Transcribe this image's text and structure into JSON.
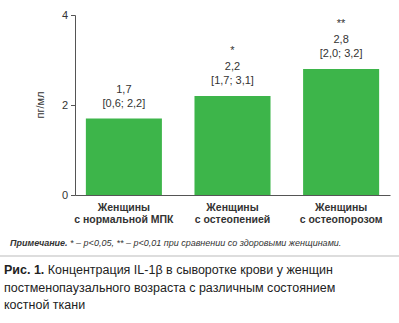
{
  "chart_data": {
    "type": "bar",
    "title": "Рис. 1. Концентрация IL-1β в сыворотке крови у женщин\nпостменопаузального возраста с различным состоянием\nкостной ткани",
    "ylabel": "пг/мл",
    "categories": [
      "Женщины\nс нормальной МПК",
      "Женщины\nс остеопенией",
      "Женщины\nс остеопорозом"
    ],
    "values": [
      1.7,
      2.2,
      2.8
    ],
    "value_labels": [
      "1,7",
      "2,2",
      "2,8"
    ],
    "interval_labels": [
      "[0,6; 2,2]",
      "[1,7; 3,1]",
      "[2,0; 3,2]"
    ],
    "significance": [
      null,
      "*",
      "**"
    ],
    "note": "Примечание. * – p<0,05, ** – p<0,01 при сравнении со здоровыми женщинами.",
    "color": "#3db54a",
    "ylim": [
      0,
      4
    ],
    "yticks": [
      0,
      2,
      4
    ],
    "grid": false,
    "data_labels": true
  }
}
